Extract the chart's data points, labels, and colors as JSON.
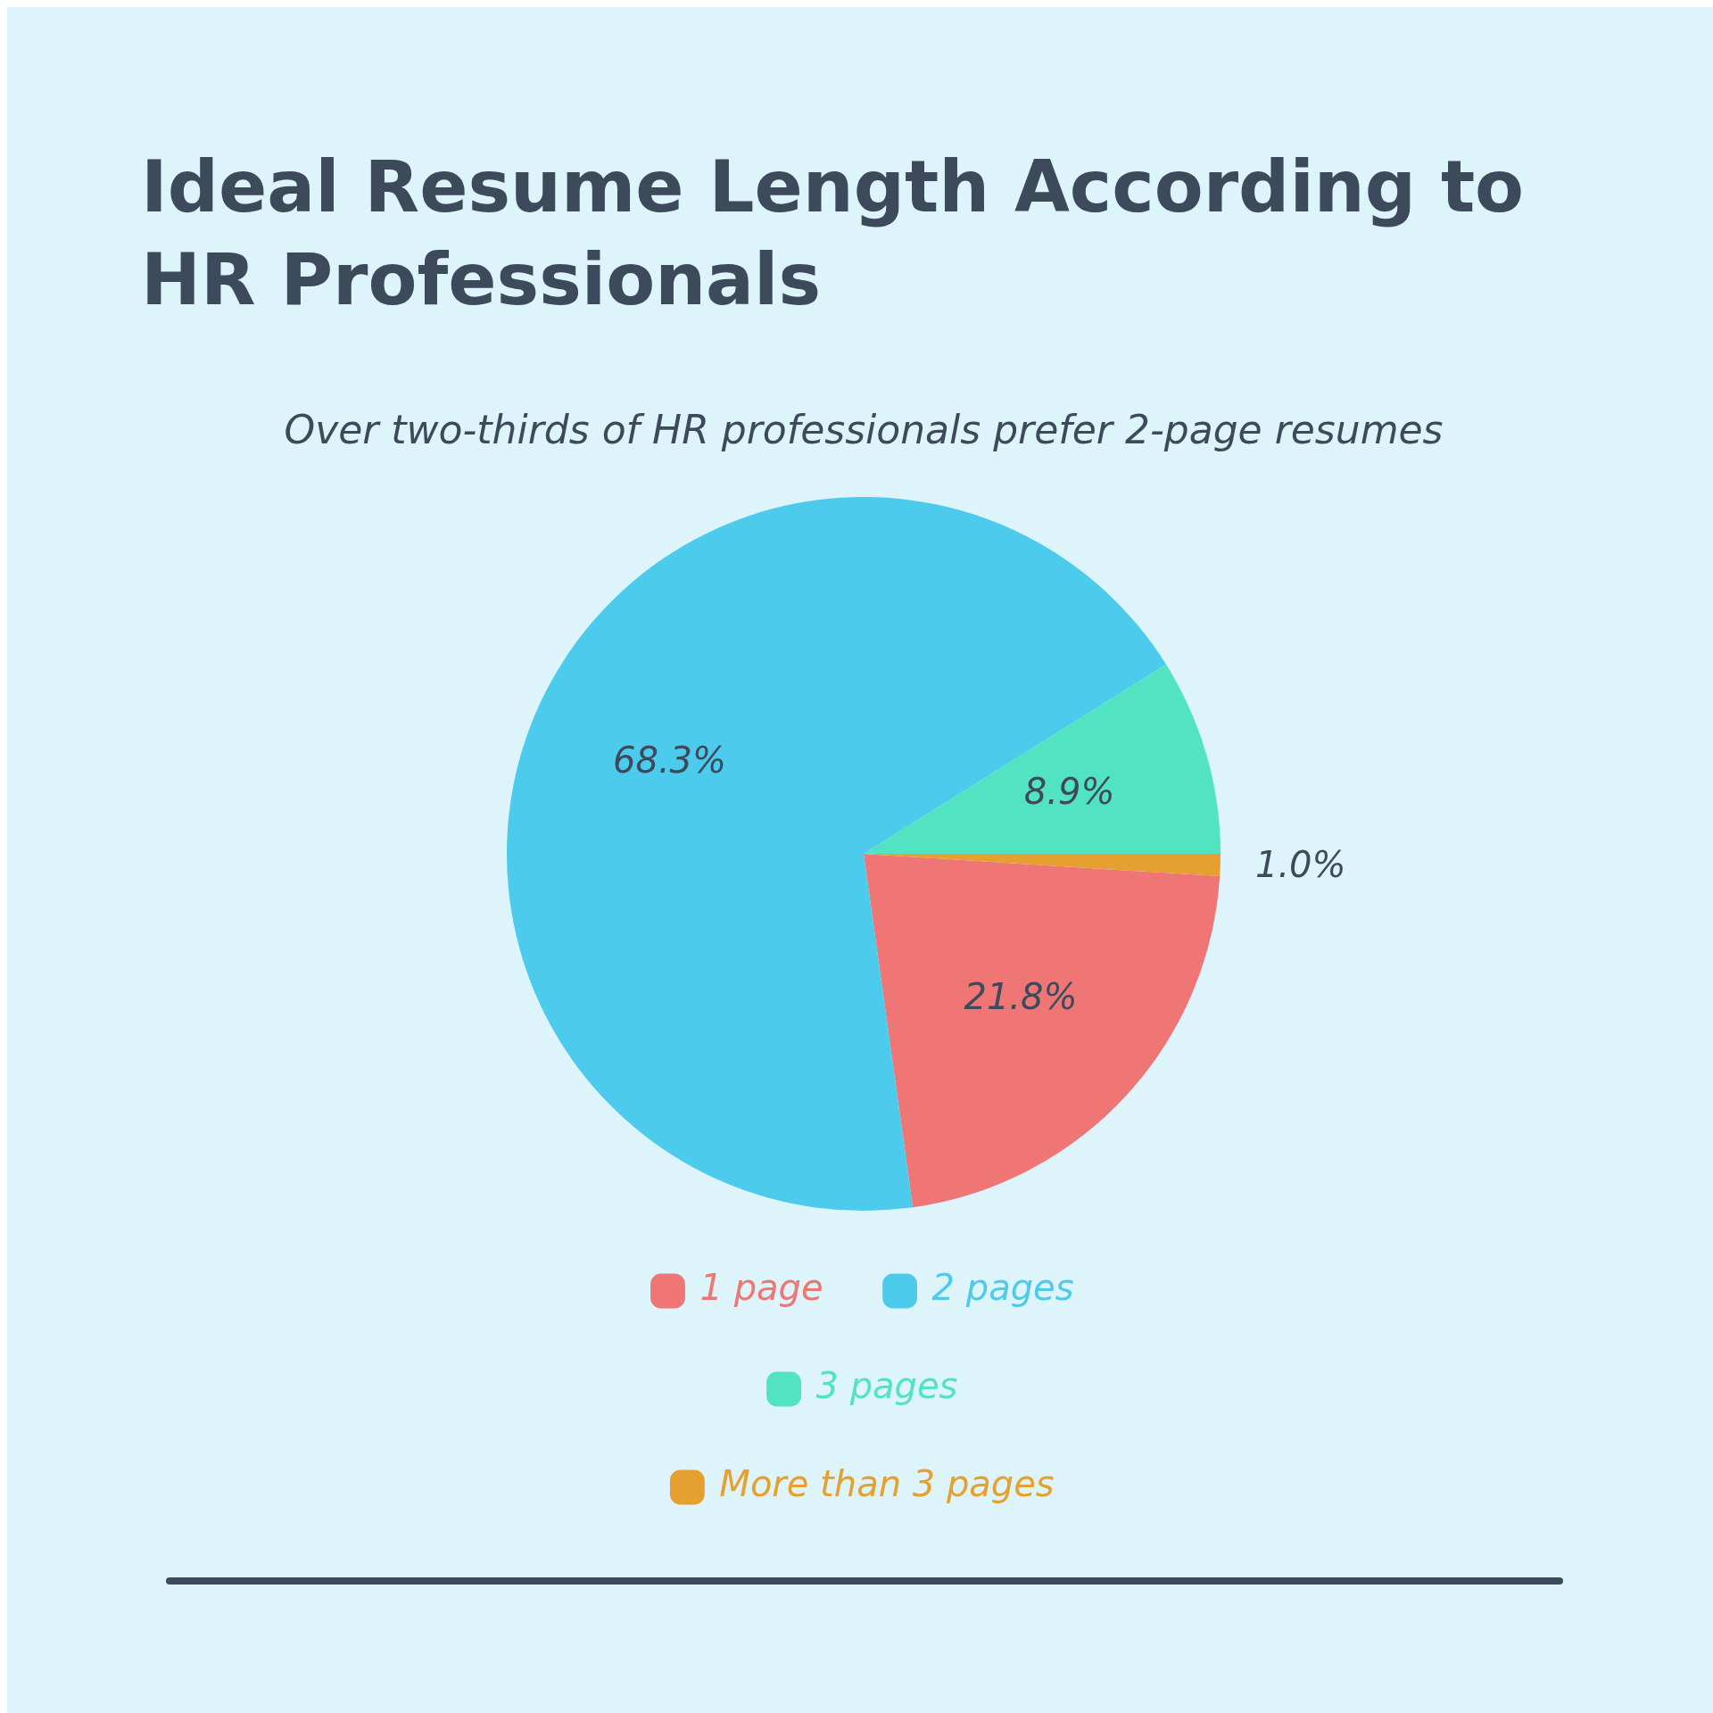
{
  "chart_data": {
    "type": "pie",
    "title": "Ideal Resume Length According to HR Professionals",
    "subtitle": "Over two-thirds of HR professionals prefer 2-page resumes",
    "categories": [
      "1 page",
      "2 pages",
      "3 pages",
      "More than 3 pages"
    ],
    "values": [
      21.8,
      68.3,
      8.9,
      1.0
    ],
    "value_labels": [
      "21.8%",
      "68.3%",
      "8.9%",
      "1.0%"
    ],
    "colors": [
      "#f07575",
      "#4ccbed",
      "#52e3c2",
      "#e5a030"
    ],
    "legend": "bottom"
  }
}
